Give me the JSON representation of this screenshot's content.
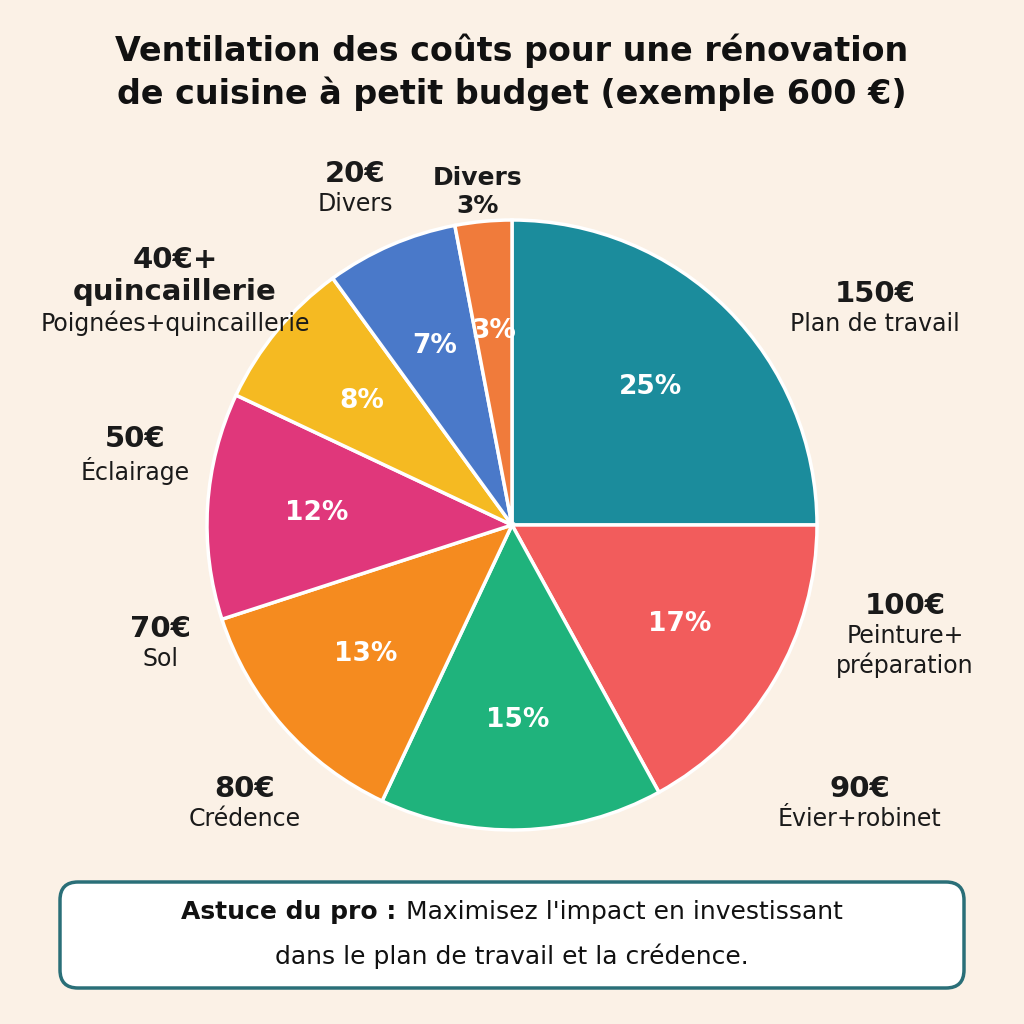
{
  "chart_data": {
    "type": "pie",
    "title": "Ventilation des coûts pour une rénovation\nde cuisine à petit budget (exemple 600 €)",
    "categories": [
      "Plan de travail",
      "Peinture+\npréparation",
      "Évier+robinet",
      "Crédence",
      "Sol",
      "Éclairage",
      "Poignées+quincaillerie",
      "Divers"
    ],
    "amount_labels": [
      "150€",
      "100€",
      "90€",
      "80€",
      "70€",
      "50€",
      "40€+\nquincaillerie",
      "20€"
    ],
    "values": [
      25,
      17,
      15,
      13,
      12,
      8,
      7,
      3
    ],
    "value_labels": [
      "25%",
      "17%",
      "15%",
      "13%",
      "12%",
      "8%",
      "7%",
      "3%"
    ],
    "colors": [
      "#1b8c9c",
      "#f25c5c",
      "#1fb37c",
      "#f58b1f",
      "#e0377b",
      "#f5ba22",
      "#4a79c9",
      "#f07b3b"
    ],
    "data_labels": true,
    "extra_label": "Divers\n3%",
    "tip_title": "Astuce du pro :",
    "tip_text": "Maximisez l'impact en investissant\ndans le plan de travail et la crédence."
  }
}
